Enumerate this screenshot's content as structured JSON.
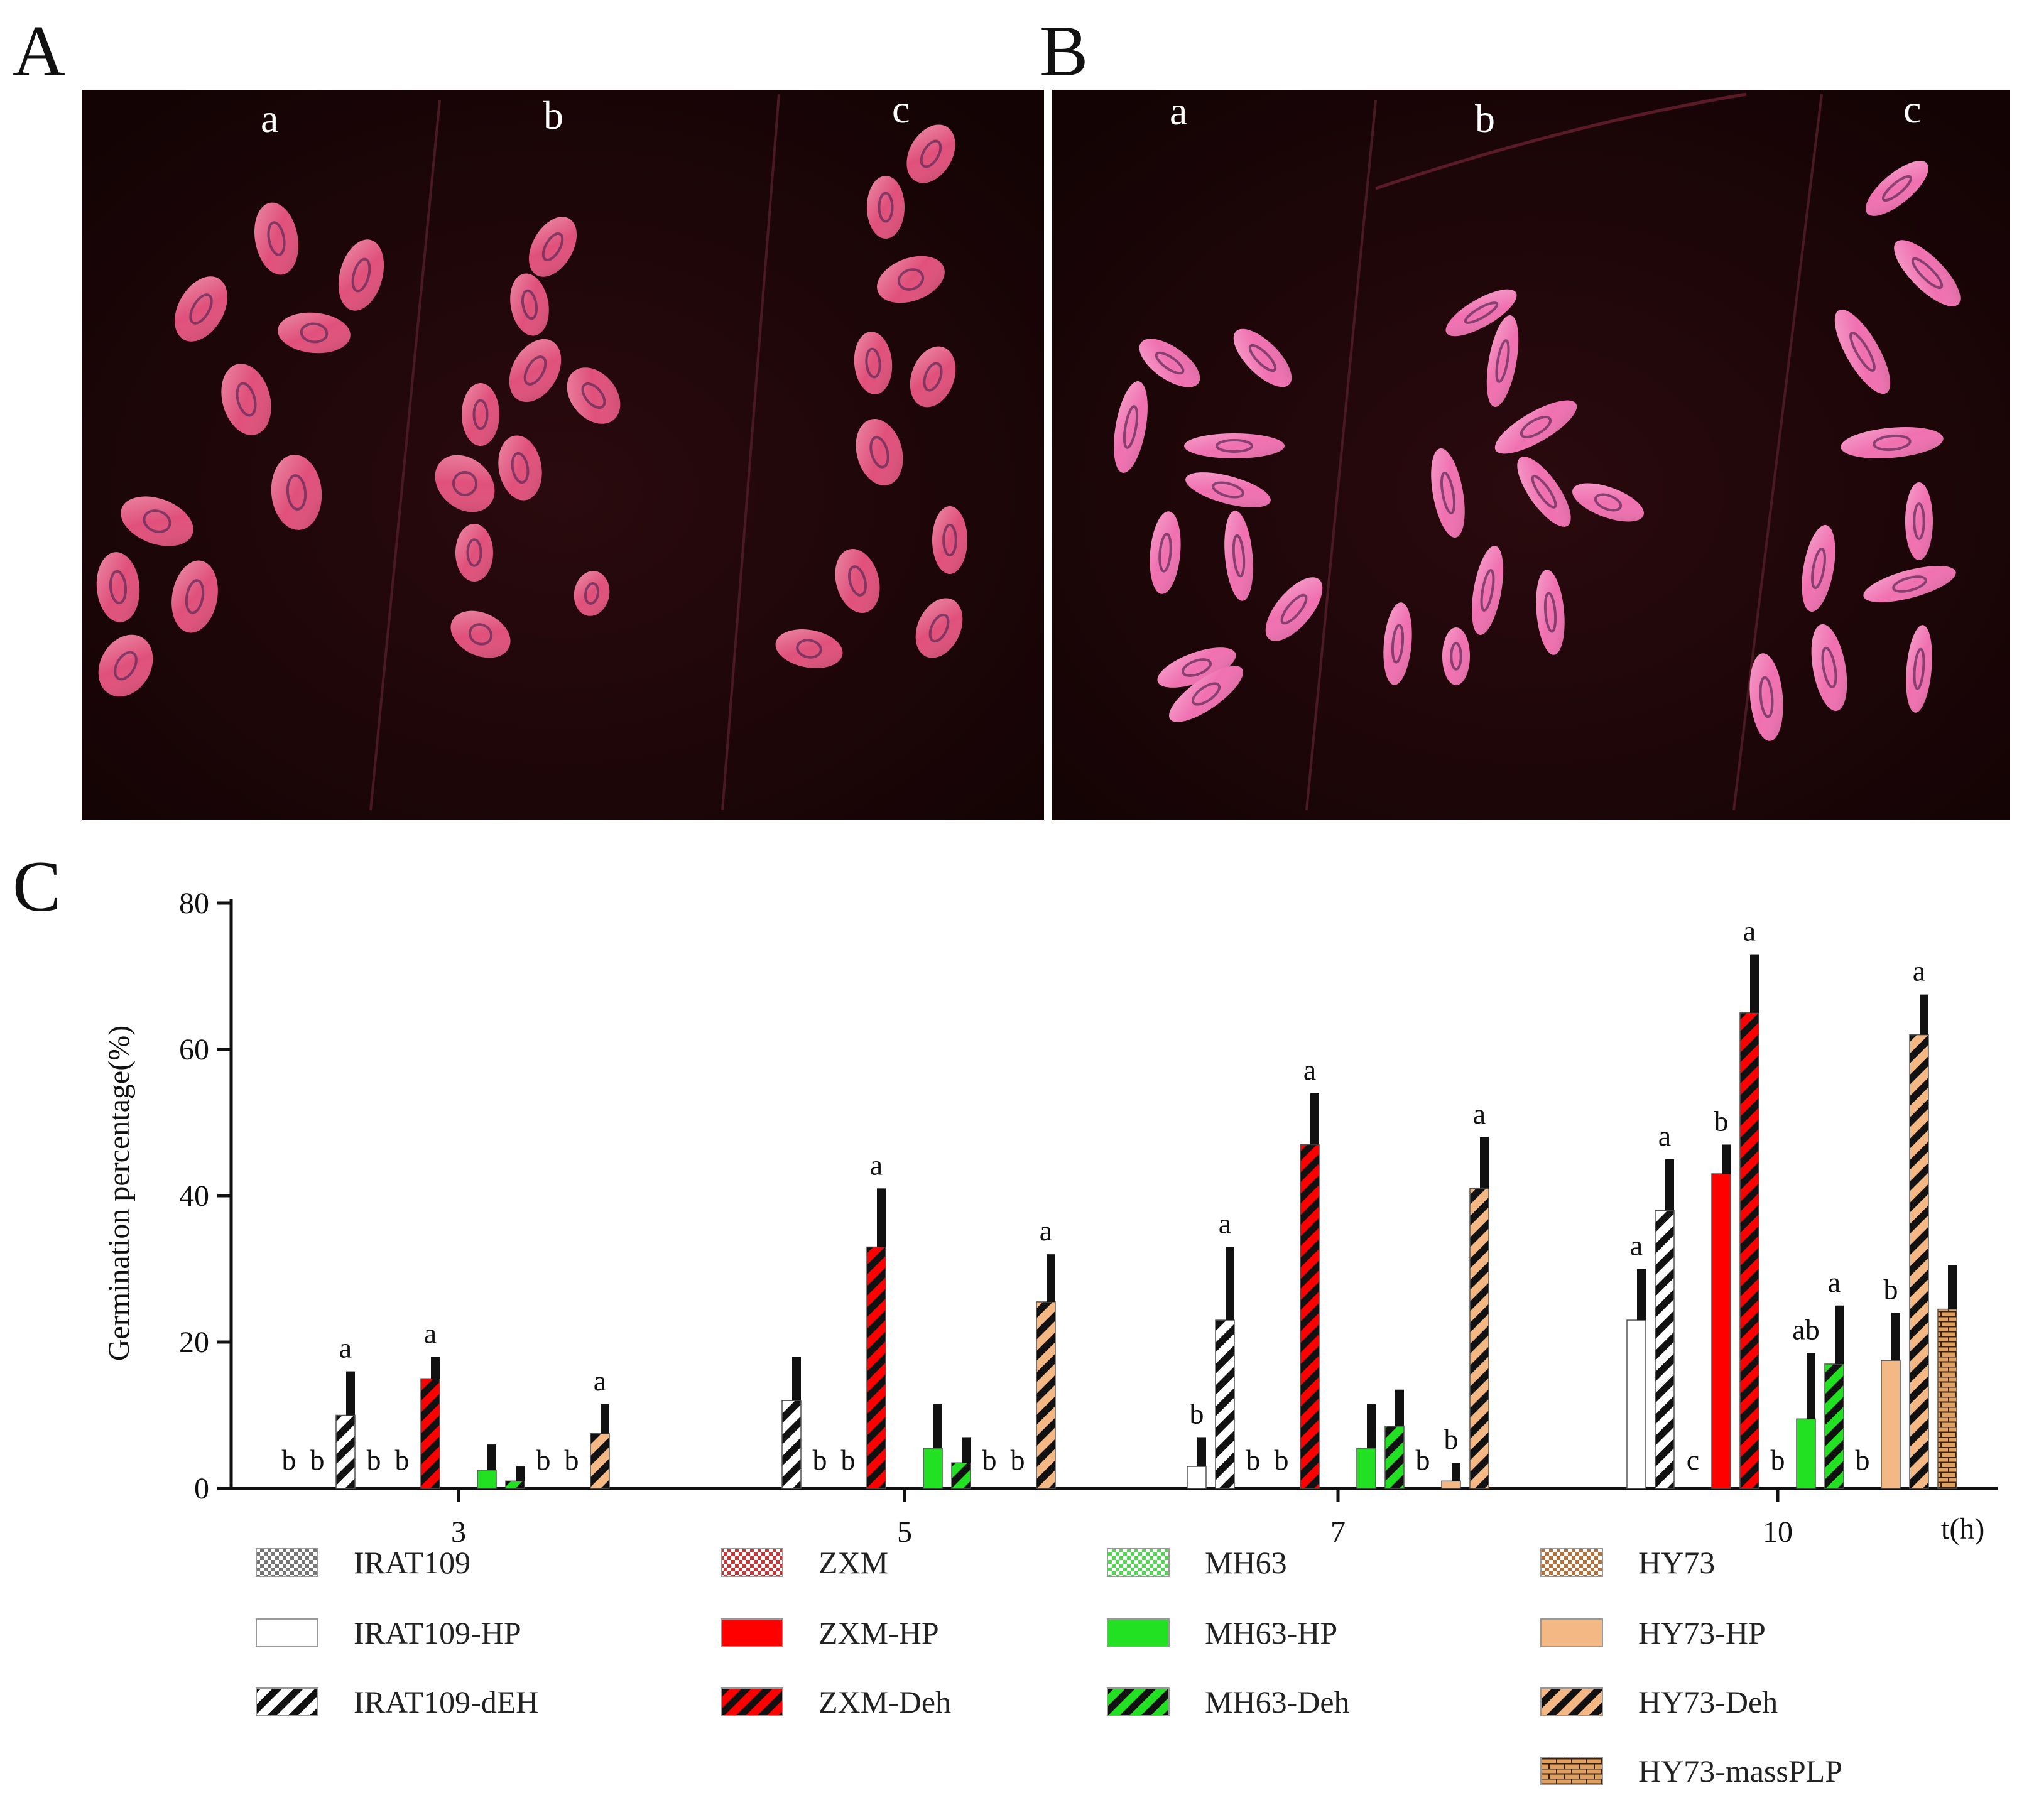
{
  "panels": {
    "A": {
      "letter": "A",
      "labels": [
        "a",
        "b",
        "c"
      ],
      "background": "#1d0608",
      "seed_color": "#e0507a"
    },
    "B": {
      "letter": "B",
      "labels": [
        "a",
        "b",
        "c"
      ],
      "background": "#1d0608",
      "seed_color": "#f070b0"
    },
    "C": {
      "letter": "C"
    }
  },
  "chart_data": {
    "type": "bar",
    "title": "",
    "xlabel": "t(h)",
    "ylabel": "Germination percentage(%)",
    "ylim": [
      0,
      80
    ],
    "yticks": [
      "0",
      "20",
      "40",
      "60",
      "80"
    ],
    "categories": [
      "3",
      "5",
      "7",
      "10"
    ],
    "grid": false,
    "legend_position": "bottom",
    "series": [
      {
        "name": "IRAT109",
        "color": "#777777",
        "pattern": "checker",
        "values": [
          0,
          0,
          0,
          0
        ],
        "errors": [
          0,
          0,
          0,
          0
        ],
        "sig": [
          "b",
          "",
          "",
          ""
        ]
      },
      {
        "name": "IRAT109-HP",
        "color": "#ffffff",
        "pattern": "solid",
        "values": [
          0,
          0,
          3,
          23
        ],
        "errors": [
          0,
          0,
          4,
          7
        ],
        "sig": [
          "b",
          "",
          "b",
          "a"
        ]
      },
      {
        "name": "IRAT109-dEH",
        "color": "#ffffff",
        "pattern": "stripe",
        "values": [
          10,
          12,
          23,
          38
        ],
        "errors": [
          6,
          6,
          10,
          7
        ],
        "sig": [
          "a",
          "",
          "a",
          "a"
        ]
      },
      {
        "name": "ZXM",
        "color": "#c43a3a",
        "pattern": "checker",
        "values": [
          0,
          0,
          0,
          0
        ],
        "errors": [
          0,
          0,
          0,
          0
        ],
        "sig": [
          "b",
          "b",
          "b",
          "c"
        ]
      },
      {
        "name": "ZXM-HP",
        "color": "#ff0000",
        "pattern": "solid",
        "values": [
          0,
          0,
          0,
          43
        ],
        "errors": [
          0,
          0,
          0,
          4
        ],
        "sig": [
          "b",
          "b",
          "b",
          "b"
        ]
      },
      {
        "name": "ZXM-Deh",
        "color": "#ff0000",
        "pattern": "stripe",
        "values": [
          15,
          33,
          47,
          65
        ],
        "errors": [
          3,
          8,
          7,
          8
        ],
        "sig": [
          "a",
          "a",
          "a",
          "a"
        ]
      },
      {
        "name": "MH63",
        "color": "#57d557",
        "pattern": "checker",
        "values": [
          0,
          0,
          0,
          0
        ],
        "errors": [
          0,
          0,
          0,
          0
        ],
        "sig": [
          "",
          "",
          "",
          "b"
        ]
      },
      {
        "name": "MH63-HP",
        "color": "#22e022",
        "pattern": "solid",
        "values": [
          2.5,
          5.5,
          5.5,
          9.5
        ],
        "errors": [
          3.5,
          6,
          6,
          9
        ],
        "sig": [
          "",
          "",
          "",
          "ab"
        ]
      },
      {
        "name": "MH63-Deh",
        "color": "#22e022",
        "pattern": "stripe",
        "values": [
          1,
          3.5,
          8.5,
          17
        ],
        "errors": [
          2,
          3.5,
          5,
          8
        ],
        "sig": [
          "",
          "",
          "",
          "a"
        ]
      },
      {
        "name": "HY73",
        "color": "#b3733a",
        "pattern": "checker",
        "values": [
          0,
          0,
          0,
          0
        ],
        "errors": [
          0,
          0,
          0,
          0
        ],
        "sig": [
          "b",
          "b",
          "b",
          "b"
        ]
      },
      {
        "name": "HY73-HP",
        "color": "#f4b884",
        "pattern": "solid",
        "values": [
          0,
          0,
          1,
          17.5
        ],
        "errors": [
          0,
          0,
          2.5,
          6.5
        ],
        "sig": [
          "b",
          "b",
          "b",
          "b"
        ]
      },
      {
        "name": "HY73-Deh",
        "color": "#f4b884",
        "pattern": "stripe",
        "values": [
          7.5,
          25.5,
          41,
          62
        ],
        "errors": [
          4,
          6.5,
          7,
          5.5
        ],
        "sig": [
          "a",
          "a",
          "a",
          "a"
        ]
      },
      {
        "name": "HY73-massPLP",
        "color": "#e0a060",
        "pattern": "brick",
        "values": [
          0,
          0,
          0,
          24.5
        ],
        "errors": [
          0,
          0,
          0,
          6
        ],
        "sig": [
          "",
          "",
          "",
          ""
        ]
      }
    ]
  }
}
